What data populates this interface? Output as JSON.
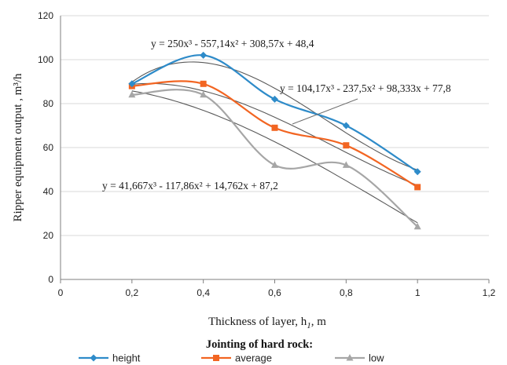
{
  "chart_data": {
    "type": "line",
    "xlabel": "Thickness of layer, h",
    "xlabel_subscript": "1",
    "xlabel_unit": ", m",
    "ylabel": "Ripper equipment output , m³/h",
    "xlim": [
      0,
      1.2
    ],
    "ylim": [
      0,
      120
    ],
    "x_ticks": [
      "0",
      "0,2",
      "0,4",
      "0,6",
      "0,8",
      "1",
      "1,2"
    ],
    "y_ticks": [
      "0",
      "20",
      "40",
      "60",
      "80",
      "100",
      "120"
    ],
    "grid": "horizontal",
    "x": [
      0.2,
      0.4,
      0.6,
      0.8,
      1.0
    ],
    "series": [
      {
        "name": "height",
        "color": "#2e8bc9",
        "marker": "diamond",
        "values": [
          89,
          102,
          82,
          70,
          49
        ]
      },
      {
        "name": "average",
        "color": "#f26522",
        "marker": "square",
        "values": [
          88,
          89,
          69,
          61,
          42
        ]
      },
      {
        "name": "low",
        "color": "#a6a6a6",
        "marker": "triangle",
        "values": [
          84,
          84,
          52,
          52,
          24
        ]
      }
    ],
    "trendlines": [
      {
        "series": "height",
        "equation": "y = 250x³ - 557,14x² + 308,57x + 48,4",
        "coeffs": [
          250,
          -557.14,
          308.57,
          48.4
        ]
      },
      {
        "series": "average",
        "equation": "y = 104,17x³ - 237,5x² + 98,333x + 77,8",
        "coeffs": [
          104.17,
          -237.5,
          98.333,
          77.8
        ]
      },
      {
        "series": "low",
        "equation": "y = 41,667x³ - 117,86x² + 14,762x + 87,2",
        "coeffs": [
          41.667,
          -117.86,
          14.762,
          87.2
        ]
      }
    ],
    "legend": {
      "title": "Jointing of hard rock:",
      "position": "bottom"
    }
  }
}
